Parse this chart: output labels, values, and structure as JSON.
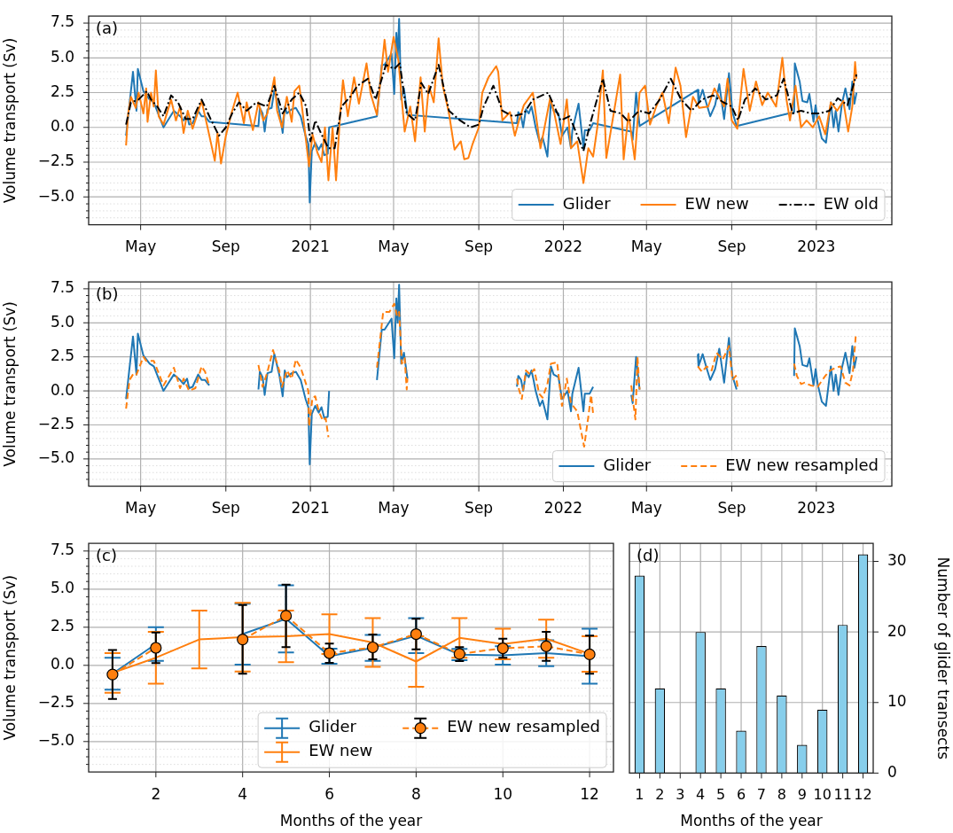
{
  "chart_data": [
    {
      "type": "line",
      "ylabel": "Volume transport (Sv)",
      "annotations": [
        "(a)"
      ],
      "grid": true,
      "legend": "bottom right",
      "xlim": [
        "2020-02-16",
        "2023-04-20"
      ],
      "ylim": [
        -7,
        8
      ],
      "xticks": [
        {
          "value": "2020-05-01",
          "label": "May"
        },
        {
          "value": "2020-09-01",
          "label": "Sep"
        },
        {
          "value": "2021-01-01",
          "label": "2021"
        },
        {
          "value": "2021-05-01",
          "label": "May"
        },
        {
          "value": "2021-09-01",
          "label": "Sep"
        },
        {
          "value": "2022-01-01",
          "label": "2022"
        },
        {
          "value": "2022-05-01",
          "label": "May"
        },
        {
          "value": "2022-09-01",
          "label": "Sep"
        },
        {
          "value": "2023-01-01",
          "label": "2023"
        }
      ],
      "yticks": [
        {
          "value": -6.5,
          "label": null
        },
        {
          "value": -6,
          "label": null
        },
        {
          "value": -5.5,
          "label": null
        },
        {
          "value": -5,
          "label": "−5.0"
        },
        {
          "value": -4.5,
          "label": null
        },
        {
          "value": -4,
          "label": null
        },
        {
          "value": -3.5,
          "label": null
        },
        {
          "value": -3,
          "label": null
        },
        {
          "value": -2.5,
          "label": "−2.5"
        },
        {
          "value": -2,
          "label": null
        },
        {
          "value": -1.5,
          "label": null
        },
        {
          "value": -1,
          "label": null
        },
        {
          "value": -0.5,
          "label": null
        },
        {
          "value": 0,
          "label": "0.0"
        },
        {
          "value": 0.5,
          "label": null
        },
        {
          "value": 1,
          "label": null
        },
        {
          "value": 1.5,
          "label": null
        },
        {
          "value": 2,
          "label": null
        },
        {
          "value": 2.5,
          "label": "2.5"
        },
        {
          "value": 3,
          "label": null
        },
        {
          "value": 3.5,
          "label": null
        },
        {
          "value": 4,
          "label": null
        },
        {
          "value": 4.5,
          "label": null
        },
        {
          "value": 5,
          "label": "5.0"
        },
        {
          "value": 5.5,
          "label": null
        },
        {
          "value": 6,
          "label": null
        },
        {
          "value": 6.5,
          "label": null
        },
        {
          "value": 7,
          "label": null
        },
        {
          "value": 7.5,
          "label": "7.5"
        }
      ],
      "series": [
        {
          "name": "Glider",
          "color": "#1f77b4",
          "line_style": "solid",
          "x": [
            "2020-04-10",
            "2020-04-20",
            "2020-04-25",
            "2020-04-27",
            "2020-05-05",
            "2020-05-14",
            "2020-05-20",
            "2020-06-03",
            "2020-06-18",
            "2020-06-27",
            "2020-07-02",
            "2020-07-07",
            "2020-07-10",
            "2020-07-15",
            "2020-07-23",
            "2020-07-28",
            "2020-08-02",
            "2020-08-08",
            "2020-10-18",
            "2020-10-20",
            "2020-10-24",
            "2020-10-27",
            "2020-10-31",
            "2020-11-06",
            "2020-11-10",
            "2020-11-17",
            "2020-11-22",
            "2020-11-25",
            "2020-11-28",
            "2020-12-05",
            "2020-12-11",
            "2020-12-18",
            "2020-12-25",
            "2020-12-29",
            "2020-12-31",
            "2021-01-03",
            "2021-01-08",
            "2021-01-13",
            "2021-01-17",
            "2021-01-21",
            "2021-01-26",
            "2021-01-28",
            "2021-04-07",
            "2021-04-14",
            "2021-04-18",
            "2021-04-28",
            "2021-05-02",
            "2021-05-05",
            "2021-05-07",
            "2021-05-09",
            "2021-05-12",
            "2021-05-16",
            "2021-05-21",
            "2021-10-26",
            "2021-10-28",
            "2021-11-01",
            "2021-11-04",
            "2021-11-08",
            "2021-11-12",
            "2021-11-16",
            "2021-11-19",
            "2021-11-22",
            "2021-11-28",
            "2021-12-02",
            "2021-12-09",
            "2021-12-14",
            "2021-12-18",
            "2021-12-25",
            "2021-12-30",
            "2022-01-03",
            "2022-01-07",
            "2022-01-12",
            "2022-01-14",
            "2022-01-23",
            "2022-01-30",
            "2022-02-01",
            "2022-02-08",
            "2022-02-13",
            "2022-04-09",
            "2022-04-11",
            "2022-04-16",
            "2022-04-21",
            "2022-07-14",
            "2022-07-15",
            "2022-07-21",
            "2022-07-26",
            "2022-08-01",
            "2022-08-08",
            "2022-08-14",
            "2022-08-21",
            "2022-08-28",
            "2022-09-02",
            "2022-09-08",
            "2022-11-30",
            "2022-12-01",
            "2022-12-08",
            "2022-12-12",
            "2022-12-19",
            "2022-12-22",
            "2022-12-28",
            "2022-12-31",
            "2023-01-03",
            "2023-01-09",
            "2023-01-15",
            "2023-01-22",
            "2023-01-26",
            "2023-01-29",
            "2023-02-02",
            "2023-02-07",
            "2023-02-12",
            "2023-02-18",
            "2023-02-22",
            "2023-02-25",
            "2023-02-28"
          ],
          "values": [
            -0.6,
            4.0,
            1.2,
            4.2,
            2.6,
            2.0,
            1.8,
            0.0,
            1.2,
            0.8,
            0.5,
            0.9,
            0.2,
            0.3,
            1.2,
            0.8,
            0.8,
            0.4,
            0.1,
            1.4,
            1.0,
            -0.3,
            1.3,
            1.4,
            2.7,
            1.2,
            -0.4,
            1.5,
            1.0,
            1.3,
            1.4,
            0.8,
            -0.6,
            -1.2,
            -5.4,
            -1.7,
            -1.1,
            -1.6,
            -1.2,
            -2.0,
            -1.9,
            0.0,
            0.8,
            4.5,
            4.5,
            5.3,
            2.4,
            6.8,
            5.0,
            7.8,
            2.0,
            2.8,
            0.9,
            0.3,
            1.1,
            0.8,
            0.0,
            1.3,
            1.0,
            1.5,
            0.8,
            0.0,
            -1.1,
            -0.7,
            -2.1,
            1.8,
            1.2,
            1.0,
            -0.6,
            -0.3,
            0.0,
            -1.5,
            -0.2,
            1.7,
            -1.5,
            -0.2,
            -0.2,
            0.3,
            -0.3,
            -0.9,
            2.5,
            0.1,
            2.7,
            1.8,
            2.7,
            1.8,
            0.8,
            1.6,
            3.1,
            0.6,
            3.9,
            1.1,
            0.1,
            1.1,
            4.6,
            3.3,
            1.9,
            1.8,
            2.4,
            0.4,
            1.6,
            0.5,
            -0.8,
            -1.1,
            1.8,
            0.0,
            1.2,
            -0.3,
            1.7,
            2.8,
            1.3,
            3.3,
            1.7,
            2.5
          ]
        },
        {
          "name": "EW new",
          "color": "#ff7f0e",
          "line_style": "solid",
          "x": [
            "2020-04-10",
            "2020-04-13",
            "2020-04-17",
            "2020-04-24",
            "2020-04-28",
            "2020-05-05",
            "2020-05-09",
            "2020-05-11",
            "2020-05-16",
            "2020-05-20",
            "2020-05-23",
            "2020-05-27",
            "2020-06-03",
            "2020-06-14",
            "2020-06-21",
            "2020-06-27",
            "2020-07-02",
            "2020-07-08",
            "2020-07-15",
            "2020-07-28",
            "2020-08-06",
            "2020-08-16",
            "2020-08-20",
            "2020-08-25",
            "2020-09-01",
            "2020-09-09",
            "2020-09-18",
            "2020-09-27",
            "2020-10-01",
            "2020-10-10",
            "2020-10-18",
            "2020-10-25",
            "2020-10-31",
            "2020-11-10",
            "2020-11-14",
            "2020-11-21",
            "2020-11-28",
            "2020-12-05",
            "2020-12-09",
            "2020-12-16",
            "2020-12-22",
            "2020-12-30",
            "2021-01-04",
            "2021-01-11",
            "2021-01-17",
            "2021-01-22",
            "2021-01-27",
            "2021-02-02",
            "2021-02-07",
            "2021-02-13",
            "2021-02-17",
            "2021-02-24",
            "2021-03-05",
            "2021-03-12",
            "2021-03-23",
            "2021-03-29",
            "2021-04-07",
            "2021-04-18",
            "2021-04-23",
            "2021-05-01",
            "2021-05-08",
            "2021-05-12",
            "2021-05-17",
            "2021-05-25",
            "2021-06-01",
            "2021-06-09",
            "2021-06-15",
            "2021-06-21",
            "2021-06-28",
            "2021-07-05",
            "2021-07-11",
            "2021-07-20",
            "2021-07-28",
            "2021-08-06",
            "2021-08-11",
            "2021-08-17",
            "2021-08-23",
            "2021-09-01",
            "2021-09-06",
            "2021-09-15",
            "2021-09-26",
            "2021-09-29",
            "2021-10-05",
            "2021-10-16",
            "2021-10-23",
            "2021-10-29",
            "2021-11-05",
            "2021-11-18",
            "2021-11-29",
            "2021-12-13",
            "2021-12-19",
            "2021-12-28",
            "2022-01-06",
            "2022-01-12",
            "2022-01-21",
            "2022-01-30",
            "2022-02-06",
            "2022-02-13",
            "2022-02-19",
            "2022-02-27",
            "2022-03-04",
            "2022-03-13",
            "2022-03-24",
            "2022-03-29",
            "2022-04-05",
            "2022-04-14",
            "2022-04-21",
            "2022-04-29",
            "2022-05-06",
            "2022-05-15",
            "2022-05-24",
            "2022-06-02",
            "2022-06-12",
            "2022-06-19",
            "2022-06-27",
            "2022-07-07",
            "2022-07-16",
            "2022-07-29",
            "2022-08-07",
            "2022-08-21",
            "2022-08-26",
            "2022-09-01",
            "2022-09-09",
            "2022-09-18",
            "2022-09-27",
            "2022-10-06",
            "2022-10-15",
            "2022-10-23",
            "2022-11-04",
            "2022-11-13",
            "2022-11-19",
            "2022-11-24",
            "2022-12-02",
            "2022-12-10",
            "2022-12-18",
            "2022-12-27",
            "2023-01-05",
            "2023-01-14",
            "2023-01-22",
            "2023-01-31",
            "2023-02-09",
            "2023-02-16",
            "2023-02-22",
            "2023-02-26",
            "2023-02-28"
          ],
          "values": [
            -1.3,
            1.0,
            2.2,
            1.4,
            2.5,
            1.0,
            2.8,
            0.4,
            2.5,
            1.5,
            4.1,
            0.8,
            0.2,
            2.0,
            0.5,
            1.5,
            -0.4,
            1.2,
            -0.1,
            1.9,
            -0.1,
            -2.4,
            -0.4,
            -2.6,
            -0.6,
            1.0,
            2.5,
            0.3,
            1.8,
            -0.2,
            1.8,
            0.5,
            1.0,
            3.6,
            1.2,
            0.0,
            2.2,
            0.4,
            2.6,
            3.0,
            0.6,
            -2.8,
            -0.5,
            -1.8,
            -2.5,
            0.0,
            -3.8,
            0.0,
            -3.8,
            1.0,
            3.4,
            0.8,
            3.6,
            1.7,
            4.6,
            2.4,
            0.9,
            6.3,
            4.0,
            6.5,
            4.8,
            2.5,
            -0.3,
            1.5,
            -1.0,
            3.6,
            -0.3,
            3.0,
            1.8,
            6.4,
            3.0,
            1.0,
            -1.6,
            -1.0,
            -2.3,
            -2.2,
            -1.2,
            0.0,
            2.5,
            3.6,
            4.4,
            4.0,
            0.5,
            1.1,
            -0.6,
            0.5,
            1.6,
            2.5,
            -1.5,
            2.1,
            1.0,
            -1.2,
            2.0,
            -1.5,
            -1.0,
            -4.0,
            -1.5,
            -2.1,
            0.0,
            4.1,
            -2.2,
            0.5,
            3.8,
            -2.3,
            1.0,
            -2.3,
            2.5,
            3.0,
            0.2,
            1.5,
            2.5,
            0.3,
            4.3,
            3.0,
            -0.7,
            2.2,
            1.4,
            1.5,
            2.8,
            1.5,
            3.5,
            0.5,
            -0.1,
            4.2,
            1.2,
            3.3,
            1.6,
            2.5,
            1.5,
            5.0,
            2.0,
            0.5,
            3.0,
            0.0,
            0.5,
            0.0,
            0.8,
            -0.5,
            1.8,
            1.2,
            1.9,
            -0.3,
            1.5,
            4.7,
            3.5
          ]
        },
        {
          "name": "EW old",
          "color": "#000000",
          "line_style": "dashdot",
          "x": [
            "2020-04-10",
            "2020-04-17",
            "2020-04-28",
            "2020-05-10",
            "2020-05-16",
            "2020-05-25",
            "2020-06-03",
            "2020-06-14",
            "2020-06-24",
            "2020-07-05",
            "2020-07-15",
            "2020-07-28",
            "2020-08-10",
            "2020-08-22",
            "2020-09-01",
            "2020-09-10",
            "2020-09-20",
            "2020-10-01",
            "2020-10-15",
            "2020-10-30",
            "2020-11-10",
            "2020-11-22",
            "2020-12-05",
            "2020-12-16",
            "2020-12-26",
            "2021-01-01",
            "2021-01-08",
            "2021-01-17",
            "2021-01-27",
            "2021-02-05",
            "2021-02-15",
            "2021-03-01",
            "2021-03-10",
            "2021-03-25",
            "2021-04-05",
            "2021-04-20",
            "2021-05-02",
            "2021-05-10",
            "2021-05-20",
            "2021-06-01",
            "2021-06-10",
            "2021-06-20",
            "2021-07-05",
            "2021-07-20",
            "2021-08-05",
            "2021-08-20",
            "2021-09-01",
            "2021-09-08",
            "2021-09-22",
            "2021-10-05",
            "2021-10-20",
            "2021-11-05",
            "2021-11-18",
            "2021-12-10",
            "2021-12-28",
            "2022-01-10",
            "2022-01-30",
            "2022-02-10",
            "2022-02-27",
            "2022-03-10",
            "2022-03-25",
            "2022-04-05",
            "2022-04-20",
            "2022-05-05",
            "2022-05-20",
            "2022-06-05",
            "2022-06-20",
            "2022-07-05",
            "2022-07-20",
            "2022-08-05",
            "2022-08-20",
            "2022-09-01",
            "2022-09-10",
            "2022-09-20",
            "2022-10-05",
            "2022-10-20",
            "2022-11-05",
            "2022-11-15",
            "2022-11-28",
            "2022-12-10",
            "2022-12-25",
            "2023-01-05",
            "2023-01-20",
            "2023-02-01",
            "2023-02-15",
            "2023-02-28"
          ],
          "values": [
            0.2,
            1.8,
            2.0,
            2.6,
            2.0,
            1.5,
            0.8,
            2.3,
            1.8,
            0.6,
            0.6,
            2.0,
            0.6,
            -0.6,
            0.0,
            1.0,
            1.8,
            1.2,
            1.8,
            1.5,
            3.0,
            1.0,
            2.0,
            2.5,
            1.5,
            -1.0,
            0.5,
            -0.5,
            -1.5,
            -1.5,
            1.5,
            2.3,
            3.0,
            3.5,
            2.0,
            4.5,
            4.2,
            4.6,
            1.0,
            0.5,
            3.2,
            2.4,
            4.5,
            1.2,
            0.5,
            0.0,
            0.2,
            1.5,
            3.0,
            1.2,
            0.8,
            1.0,
            2.0,
            2.5,
            0.5,
            0.8,
            -1.7,
            0.5,
            3.5,
            1.2,
            1.0,
            0.4,
            1.2,
            1.0,
            2.0,
            3.5,
            2.0,
            1.2,
            2.0,
            2.3,
            1.8,
            1.5,
            0.5,
            2.0,
            2.8,
            2.0,
            2.3,
            3.5,
            1.0,
            1.2,
            1.0,
            1.0,
            1.2,
            2.1,
            1.6,
            3.8
          ]
        }
      ]
    },
    {
      "type": "line",
      "ylabel": "Volume transport (Sv)",
      "annotations": [
        "(b)"
      ],
      "grid": true,
      "legend": "bottom right",
      "xlim": [
        "2020-02-16",
        "2023-04-20"
      ],
      "ylim": [
        -7,
        8
      ],
      "xticks": [
        {
          "value": "2020-05-01",
          "label": "May"
        },
        {
          "value": "2020-09-01",
          "label": "Sep"
        },
        {
          "value": "2021-01-01",
          "label": "2021"
        },
        {
          "value": "2021-05-01",
          "label": "May"
        },
        {
          "value": "2021-09-01",
          "label": "Sep"
        },
        {
          "value": "2022-01-01",
          "label": "2022"
        },
        {
          "value": "2022-05-01",
          "label": "May"
        },
        {
          "value": "2022-09-01",
          "label": "Sep"
        },
        {
          "value": "2023-01-01",
          "label": "2023"
        }
      ],
      "yticks": [
        {
          "value": -6.5,
          "label": null
        },
        {
          "value": -6,
          "label": null
        },
        {
          "value": -5.5,
          "label": null
        },
        {
          "value": -5,
          "label": "−5.0"
        },
        {
          "value": -4.5,
          "label": null
        },
        {
          "value": -4,
          "label": null
        },
        {
          "value": -3.5,
          "label": null
        },
        {
          "value": -3,
          "label": null
        },
        {
          "value": -2.5,
          "label": "−2.5"
        },
        {
          "value": -2,
          "label": null
        },
        {
          "value": -1.5,
          "label": null
        },
        {
          "value": -1,
          "label": null
        },
        {
          "value": -0.5,
          "label": null
        },
        {
          "value": 0,
          "label": "0.0"
        },
        {
          "value": 0.5,
          "label": null
        },
        {
          "value": 1,
          "label": null
        },
        {
          "value": 1.5,
          "label": null
        },
        {
          "value": 2,
          "label": null
        },
        {
          "value": 2.5,
          "label": "2.5"
        },
        {
          "value": 3,
          "label": null
        },
        {
          "value": 3.5,
          "label": null
        },
        {
          "value": 4,
          "label": null
        },
        {
          "value": 4.5,
          "label": null
        },
        {
          "value": 5,
          "label": "5.0"
        },
        {
          "value": 5.5,
          "label": null
        },
        {
          "value": 6,
          "label": null
        },
        {
          "value": 6.5,
          "label": null
        },
        {
          "value": 7,
          "label": null
        },
        {
          "value": 7.5,
          "label": "7.5"
        }
      ],
      "series": [
        {
          "name": "Glider",
          "color": "#1f77b4",
          "line_style": "solid",
          "x": [
            "2020-04-10",
            "2020-04-20",
            "2020-04-25",
            "2020-04-27",
            "2020-05-05",
            "2020-05-14",
            "2020-05-20",
            "2020-06-03",
            "2020-06-18",
            "2020-06-27",
            "2020-07-02",
            "2020-07-07",
            "2020-07-10",
            "2020-07-15",
            "2020-07-23",
            "2020-07-28",
            "2020-08-02",
            "2020-08-08",
            "2020-09-15",
            "2020-10-18",
            "2020-10-20",
            "2020-10-24",
            "2020-10-27",
            "2020-10-31",
            "2020-11-06",
            "2020-11-10",
            "2020-11-17",
            "2020-11-22",
            "2020-11-25",
            "2020-11-28",
            "2020-12-05",
            "2020-12-11",
            "2020-12-18",
            "2020-12-25",
            "2020-12-29",
            "2020-12-31",
            "2021-01-03",
            "2021-01-08",
            "2021-01-13",
            "2021-01-17",
            "2021-01-21",
            "2021-01-26",
            "2021-01-28",
            "2021-03-01",
            "2021-04-07",
            "2021-04-14",
            "2021-04-18",
            "2021-04-28",
            "2021-05-02",
            "2021-05-05",
            "2021-05-07",
            "2021-05-09",
            "2021-05-12",
            "2021-05-16",
            "2021-05-21",
            "2021-08-01",
            "2021-10-26",
            "2021-10-28",
            "2021-11-01",
            "2021-11-04",
            "2021-11-08",
            "2021-11-12",
            "2021-11-16",
            "2021-11-19",
            "2021-11-22",
            "2021-11-28",
            "2021-12-02",
            "2021-12-09",
            "2021-12-14",
            "2021-12-18",
            "2021-12-25",
            "2021-12-30",
            "2022-01-03",
            "2022-01-07",
            "2022-01-12",
            "2022-01-14",
            "2022-01-23",
            "2022-01-30",
            "2022-02-01",
            "2022-02-08",
            "2022-02-13",
            "2022-03-15",
            "2022-04-09",
            "2022-04-11",
            "2022-04-16",
            "2022-04-21",
            "2022-06-01",
            "2022-07-14",
            "2022-07-15",
            "2022-07-21",
            "2022-07-26",
            "2022-08-01",
            "2022-08-08",
            "2022-08-14",
            "2022-08-21",
            "2022-08-28",
            "2022-09-02",
            "2022-09-08",
            "2022-10-15",
            "2022-11-30",
            "2022-12-01",
            "2022-12-08",
            "2022-12-12",
            "2022-12-19",
            "2022-12-22",
            "2022-12-28",
            "2022-12-31",
            "2023-01-03",
            "2023-01-09",
            "2023-01-15",
            "2023-01-22",
            "2023-01-26",
            "2023-01-29",
            "2023-02-02",
            "2023-02-07",
            "2023-02-12",
            "2023-02-18",
            "2023-02-22",
            "2023-02-25",
            "2023-02-28"
          ],
          "values": [
            -0.6,
            4.0,
            1.2,
            4.2,
            2.6,
            2.0,
            1.8,
            0.0,
            1.2,
            0.8,
            0.5,
            0.9,
            0.2,
            0.3,
            1.2,
            0.8,
            0.8,
            0.4,
            null,
            0.1,
            1.4,
            1.0,
            -0.3,
            1.3,
            1.4,
            2.7,
            1.2,
            -0.4,
            1.5,
            1.0,
            1.3,
            1.4,
            0.8,
            -0.6,
            -1.2,
            -5.4,
            -1.7,
            -1.1,
            -1.6,
            -1.2,
            -2.0,
            -1.9,
            0.0,
            null,
            0.8,
            4.5,
            4.5,
            5.3,
            2.4,
            6.8,
            5.0,
            7.8,
            2.0,
            2.8,
            0.9,
            null,
            0.3,
            1.1,
            0.8,
            0.0,
            1.3,
            1.0,
            1.5,
            0.8,
            0.0,
            -1.1,
            -0.7,
            -2.1,
            1.8,
            1.2,
            1.0,
            -0.6,
            -0.3,
            0.0,
            -1.5,
            -0.2,
            1.7,
            -1.5,
            -0.2,
            -0.2,
            0.3,
            null,
            -0.3,
            -0.9,
            2.5,
            0.1,
            null,
            2.7,
            1.8,
            2.7,
            1.8,
            0.8,
            1.6,
            3.1,
            0.6,
            3.9,
            1.1,
            0.1,
            null,
            1.1,
            4.6,
            3.3,
            1.9,
            1.8,
            2.4,
            0.4,
            1.6,
            0.5,
            -0.8,
            -1.1,
            1.8,
            0.0,
            1.2,
            -0.3,
            1.7,
            2.8,
            1.3,
            3.3,
            1.7,
            2.5
          ]
        },
        {
          "name": "EW new resampled",
          "color": "#ff7f0e",
          "line_style": "dashed",
          "x": [
            "2020-04-10",
            "2020-04-15",
            "2020-04-21",
            "2020-04-25",
            "2020-05-05",
            "2020-05-09",
            "2020-05-20",
            "2020-06-03",
            "2020-06-18",
            "2020-06-27",
            "2020-07-02",
            "2020-07-10",
            "2020-07-19",
            "2020-07-28",
            "2020-08-02",
            "2020-08-08",
            "2020-09-15",
            "2020-10-18",
            "2020-10-24",
            "2020-10-31",
            "2020-11-08",
            "2020-11-17",
            "2020-11-21",
            "2020-11-28",
            "2020-12-05",
            "2020-12-11",
            "2020-12-18",
            "2020-12-29",
            "2020-12-30",
            "2021-01-04",
            "2021-01-08",
            "2021-01-13",
            "2021-01-19",
            "2021-01-23",
            "2021-01-27",
            "2021-03-01",
            "2021-04-07",
            "2021-04-16",
            "2021-04-25",
            "2021-05-02",
            "2021-05-06",
            "2021-05-09",
            "2021-05-13",
            "2021-05-17",
            "2021-05-20",
            "2021-05-21",
            "2021-08-01",
            "2021-10-26",
            "2021-10-29",
            "2021-11-02",
            "2021-11-08",
            "2021-11-14",
            "2021-11-20",
            "2021-11-27",
            "2021-12-02",
            "2021-12-09",
            "2021-12-14",
            "2021-12-23",
            "2021-12-30",
            "2022-01-06",
            "2022-01-12",
            "2022-01-21",
            "2022-01-31",
            "2022-02-06",
            "2022-02-10",
            "2022-02-13",
            "2022-03-15",
            "2022-04-09",
            "2022-04-12",
            "2022-04-15",
            "2022-04-18",
            "2022-04-21",
            "2022-06-01",
            "2022-07-14",
            "2022-07-20",
            "2022-07-27",
            "2022-08-03",
            "2022-08-10",
            "2022-08-19",
            "2022-08-28",
            "2022-09-02",
            "2022-09-07",
            "2022-09-10",
            "2022-10-15",
            "2022-11-30",
            "2022-12-04",
            "2022-12-10",
            "2022-12-15",
            "2022-12-24",
            "2023-01-03",
            "2023-01-14",
            "2023-01-21",
            "2023-01-29",
            "2023-02-05",
            "2023-02-12",
            "2023-02-18",
            "2023-02-23",
            "2023-02-27"
          ],
          "values": [
            -1.3,
            0.8,
            1.3,
            1.2,
            2.5,
            2.2,
            2.2,
            0.4,
            1.7,
            0.2,
            0.9,
            0.0,
            0.2,
            1.8,
            1.4,
            0.4,
            null,
            1.9,
            0.3,
            1.4,
            3.0,
            1.5,
            0.3,
            1.5,
            0.9,
            2.3,
            1.7,
            0.0,
            -2.6,
            -0.5,
            -0.4,
            -1.5,
            -2.2,
            -2.0,
            -3.4,
            null,
            1.7,
            5.8,
            5.8,
            6.4,
            5.5,
            5.8,
            2.0,
            2.4,
            0.1,
            0.9,
            null,
            0.9,
            0.1,
            -0.6,
            1.5,
            1.2,
            1.6,
            -0.2,
            -0.5,
            0.5,
            2.0,
            2.1,
            -1.1,
            0.9,
            -0.9,
            -1.5,
            -4.1,
            -1.9,
            -0.3,
            -1.7,
            null,
            0.4,
            -0.9,
            -2.1,
            2.5,
            0.1,
            null,
            1.8,
            1.4,
            1.8,
            1.5,
            2.8,
            2.3,
            3.3,
            0.8,
            1.1,
            0.1,
            null,
            2.0,
            1.1,
            0.5,
            0.6,
            0.4,
            0.3,
            1.1,
            1.5,
            1.7,
            1.8,
            0.6,
            0.4,
            1.5,
            4.1
          ]
        }
      ]
    },
    {
      "type": "line",
      "xlabel": "Months of the year",
      "ylabel": "Volume transport (Sv)",
      "annotations": [
        "(c)"
      ],
      "grid": true,
      "legend": "bottom right",
      "x": [
        1,
        2,
        3,
        4,
        5,
        6,
        7,
        8,
        9,
        10,
        11,
        12
      ],
      "xlim": [
        0.45,
        12.55
      ],
      "ylim": [
        -7,
        8
      ],
      "xticks": [
        2,
        4,
        6,
        8,
        10,
        12
      ],
      "yticks": [
        {
          "value": -6.5,
          "label": null
        },
        {
          "value": -6,
          "label": null
        },
        {
          "value": -5.5,
          "label": null
        },
        {
          "value": -5,
          "label": "−5.0"
        },
        {
          "value": -4.5,
          "label": null
        },
        {
          "value": -4,
          "label": null
        },
        {
          "value": -3.5,
          "label": null
        },
        {
          "value": -3,
          "label": null
        },
        {
          "value": -2.5,
          "label": "−2.5"
        },
        {
          "value": -2,
          "label": null
        },
        {
          "value": -1.5,
          "label": null
        },
        {
          "value": -1,
          "label": null
        },
        {
          "value": -0.5,
          "label": null
        },
        {
          "value": 0,
          "label": "0.0"
        },
        {
          "value": 0.5,
          "label": null
        },
        {
          "value": 1,
          "label": null
        },
        {
          "value": 1.5,
          "label": null
        },
        {
          "value": 2,
          "label": null
        },
        {
          "value": 2.5,
          "label": "2.5"
        },
        {
          "value": 3,
          "label": null
        },
        {
          "value": 3.5,
          "label": null
        },
        {
          "value": 4,
          "label": null
        },
        {
          "value": 4.5,
          "label": null
        },
        {
          "value": 5,
          "label": "5.0"
        },
        {
          "value": 5.5,
          "label": null
        },
        {
          "value": 6,
          "label": null
        },
        {
          "value": 6.5,
          "label": null
        },
        {
          "value": 7,
          "label": null
        },
        {
          "value": 7.5,
          "label": "7.5"
        }
      ],
      "series": [
        {
          "name": "Glider",
          "color": "#1f77b4",
          "line_style": "solid",
          "values": [
            -0.55,
            1.4,
            null,
            2.05,
            3.05,
            0.6,
            1.15,
            1.95,
            0.7,
            0.65,
            0.8,
            0.6
          ],
          "errors": [
            1.05,
            1.1,
            null,
            2.0,
            2.2,
            0.5,
            0.85,
            1.15,
            [
              0.33,
              1.08
            ],
            0.6,
            0.85,
            1.8
          ]
        },
        {
          "name": "EW new",
          "color": "#ff7f0e",
          "line_style": "solid",
          "values": [
            -0.5,
            0.5,
            1.7,
            1.85,
            1.9,
            2.05,
            1.5,
            0.25,
            1.8,
            1.4,
            1.75,
            0.75
          ],
          "errors": [
            1.3,
            1.7,
            1.9,
            2.25,
            1.7,
            1.3,
            1.6,
            1.65,
            1.3,
            1.0,
            1.25,
            [
              -0.42,
              1.9
            ]
          ]
        },
        {
          "name": "EW new resampled",
          "color": "#ff7f0e",
          "line_style": "dashed",
          "marker": "circle",
          "values": [
            -0.6,
            1.15,
            null,
            1.7,
            3.25,
            0.8,
            1.18,
            2.05,
            0.75,
            1.12,
            1.25,
            0.72
          ],
          "errors": [
            1.6,
            1.0,
            null,
            2.25,
            2.05,
            0.63,
            [
              0.4,
              2.03
            ],
            1.0,
            [
              0.28,
              1.2
            ],
            0.62,
            0.95,
            [
              -0.55,
              1.95
            ]
          ]
        }
      ]
    },
    {
      "type": "bar",
      "xlabel": "Months of the year",
      "y2label": "Number of glider transects",
      "annotations": [
        "(d)"
      ],
      "grid": true,
      "categories": [
        "1",
        "2",
        "3",
        "4",
        "5",
        "6",
        "7",
        "8",
        "9",
        "10",
        "11",
        "12"
      ],
      "y2lim": [
        0,
        32.55
      ],
      "y2ticks": [
        0,
        10,
        20,
        30
      ],
      "series": [
        {
          "color": "#87ceeb",
          "axis": "y2",
          "values": [
            28,
            12,
            0,
            20,
            12,
            6,
            18,
            11,
            4,
            9,
            21,
            31
          ]
        }
      ]
    }
  ]
}
